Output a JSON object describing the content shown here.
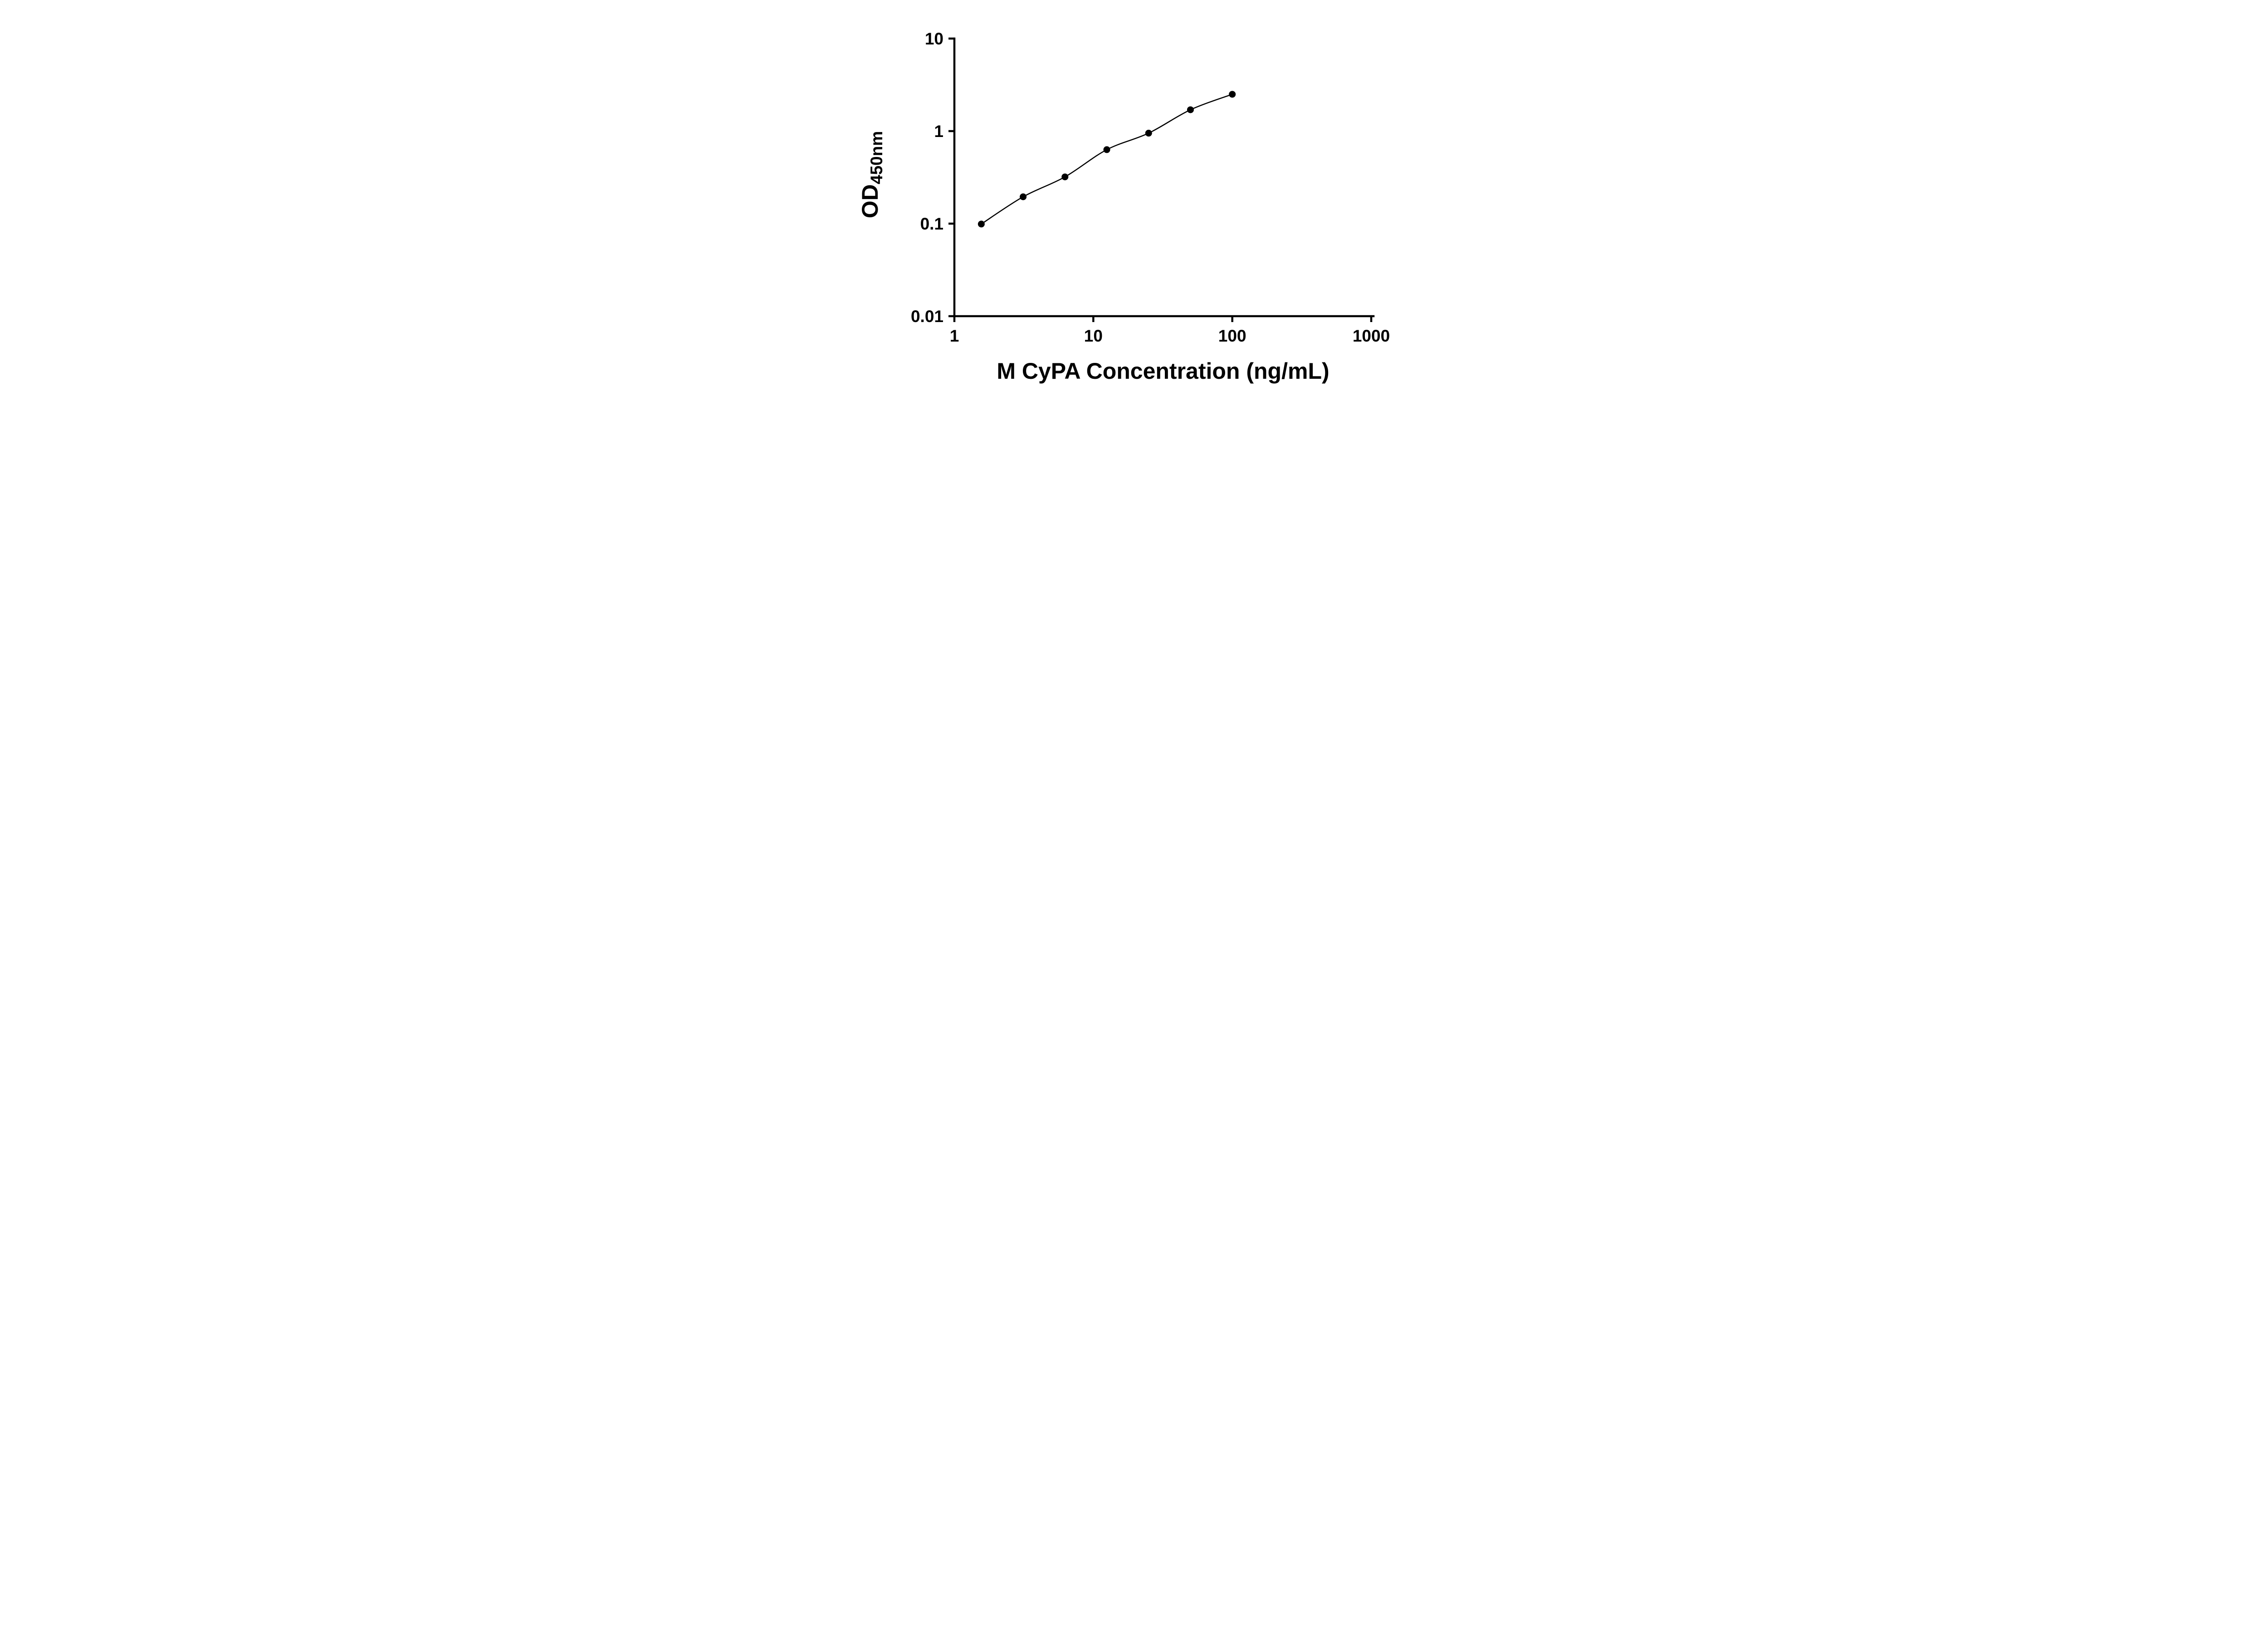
{
  "figure": {
    "background_color": "#ffffff"
  },
  "chart_data": {
    "type": "line",
    "subtype": "scatter-line standard curve, log-log axes",
    "title": "",
    "xlabel": "M CyPA Concentration (ng/mL)",
    "ylabel": "OD",
    "ylabel_subscript": "450nm",
    "x_scale": "log10",
    "y_scale": "log10",
    "xlim": [
      1,
      1000
    ],
    "ylim": [
      0.01,
      10
    ],
    "x_ticks": [
      1,
      10,
      100,
      1000
    ],
    "x_tick_labels": [
      "1",
      "10",
      "100",
      "1000"
    ],
    "y_ticks": [
      0.01,
      0.1,
      1,
      10
    ],
    "y_tick_labels": [
      "0.01",
      "0.1",
      "1",
      "10"
    ],
    "grid": false,
    "legend": false,
    "axis_color": "#000000",
    "series": [
      {
        "marker": "filled-circle",
        "marker_color": "#000000",
        "line_color": "#000000",
        "points": [
          {
            "x": 1.5625,
            "y": 0.099
          },
          {
            "x": 3.125,
            "y": 0.195
          },
          {
            "x": 6.25,
            "y": 0.32
          },
          {
            "x": 12.5,
            "y": 0.63
          },
          {
            "x": 25,
            "y": 0.95
          },
          {
            "x": 50,
            "y": 1.7
          },
          {
            "x": 100,
            "y": 2.5
          }
        ]
      }
    ]
  }
}
